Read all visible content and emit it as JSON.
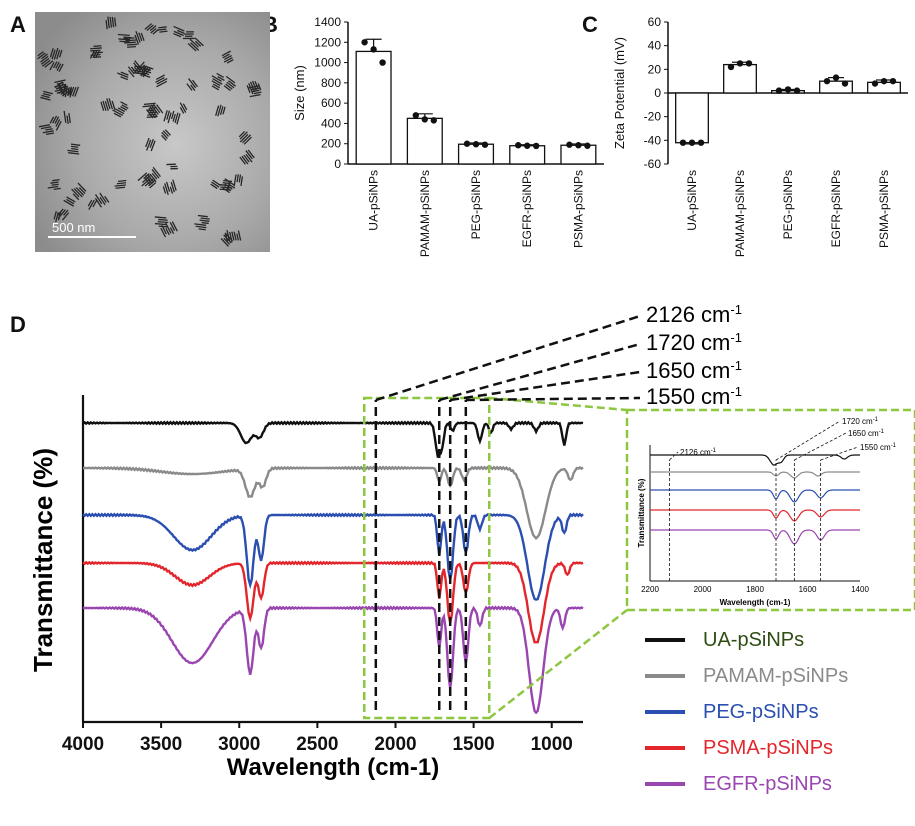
{
  "panel_labels": {
    "a": "A",
    "b": "B",
    "c": "C",
    "d": "D"
  },
  "panel_a": {
    "scale_bar": "500 nm"
  },
  "chart_data": [
    {
      "id": "B",
      "type": "bar",
      "ylabel": "Size (nm)",
      "ylim": [
        0,
        1400
      ],
      "yticks": [
        0,
        200,
        400,
        600,
        800,
        1000,
        1200,
        1400
      ],
      "categories": [
        "UA-pSiNPs",
        "PAMAM-pSiNPs",
        "PEG-pSiNPs",
        "EGFR-pSiNPs",
        "PSMA-pSiNPs"
      ],
      "values": [
        1110,
        450,
        195,
        180,
        185
      ],
      "errors": [
        120,
        45,
        12,
        10,
        12
      ],
      "points": [
        [
          1200,
          1130,
          1000
        ],
        [
          480,
          440,
          430
        ],
        [
          200,
          195,
          190
        ],
        [
          185,
          180,
          178
        ],
        [
          190,
          185,
          180
        ]
      ]
    },
    {
      "id": "C",
      "type": "bar",
      "ylabel": "Zeta  Potential (mV)",
      "ylim": [
        -60,
        60
      ],
      "yticks": [
        -60,
        -40,
        -20,
        0,
        20,
        40,
        60
      ],
      "categories": [
        "UA-pSiNPs",
        "PAMAM-pSiNPs",
        "PEG-pSiNPs",
        "EGFR-pSiNPs",
        "PSMA-pSiNPs"
      ],
      "values": [
        -42,
        24,
        2,
        10,
        9
      ],
      "errors": [
        1,
        2,
        1,
        3,
        2
      ],
      "points": [
        [
          -42,
          -42,
          -42
        ],
        [
          22,
          25,
          25
        ],
        [
          2,
          3,
          2
        ],
        [
          10,
          13,
          8
        ],
        [
          8,
          10,
          10
        ]
      ]
    },
    {
      "id": "D",
      "type": "line",
      "xlabel": "Wavelength (cm-1)",
      "ylabel": "Transmittance (%)",
      "xlim": [
        4000,
        800
      ],
      "xticks": [
        4000,
        3500,
        3000,
        2500,
        2000,
        1500,
        1000
      ],
      "peak_labels": [
        {
          "text": "2126 cm",
          "sup": "-1",
          "x": 2126
        },
        {
          "text": "1720 cm",
          "sup": "-1",
          "x": 1720
        },
        {
          "text": "1650 cm",
          "sup": "-1",
          "x": 1650
        },
        {
          "text": "1550 cm",
          "sup": "-1",
          "x": 1550
        }
      ],
      "series": [
        {
          "name": "UA-pSiNPs",
          "color": "#111111"
        },
        {
          "name": "PAMAM-pSiNPs",
          "color": "#8a8a8a"
        },
        {
          "name": "PEG-pSiNPs",
          "color": "#2a4fb0"
        },
        {
          "name": "PSMA-pSiNPs",
          "color": "#e3262b"
        },
        {
          "name": "EGFR-pSiNPs",
          "color": "#9a46b0"
        }
      ],
      "legend_placement": "bottom-right"
    },
    {
      "id": "D-inset",
      "type": "line",
      "xlabel": "Wavelength (cm-1)",
      "ylabel": "Transmittance (%)",
      "xlim": [
        2200,
        1400
      ],
      "xticks": [
        2200,
        2000,
        1800,
        1600,
        1400
      ],
      "peak_labels": [
        {
          "text": "2126 cm",
          "sup": "-1",
          "x": 2126
        },
        {
          "text": "1720 cm",
          "sup": "-1",
          "x": 1720
        },
        {
          "text": "1650 cm",
          "sup": "-1",
          "x": 1650
        },
        {
          "text": "1550 cm",
          "sup": "-1",
          "x": 1550
        }
      ]
    }
  ],
  "colors": {
    "zoom_box": "#8dc63f"
  },
  "legend": {
    "items": [
      {
        "label": "UA-pSiNPs",
        "color": "#111111",
        "text_color": "#2e4d12"
      },
      {
        "label": "PAMAM-pSiNPs",
        "color": "#8a8a8a",
        "text_color": "#8a8a8a"
      },
      {
        "label": "PEG-pSiNPs",
        "color": "#2a4fb0",
        "text_color": "#2a4fb0"
      },
      {
        "label": "PSMA-pSiNPs",
        "color": "#e3262b",
        "text_color": "#e3262b"
      },
      {
        "label": "EGFR-pSiNPs",
        "color": "#9a46b0",
        "text_color": "#9a46b0"
      }
    ]
  }
}
